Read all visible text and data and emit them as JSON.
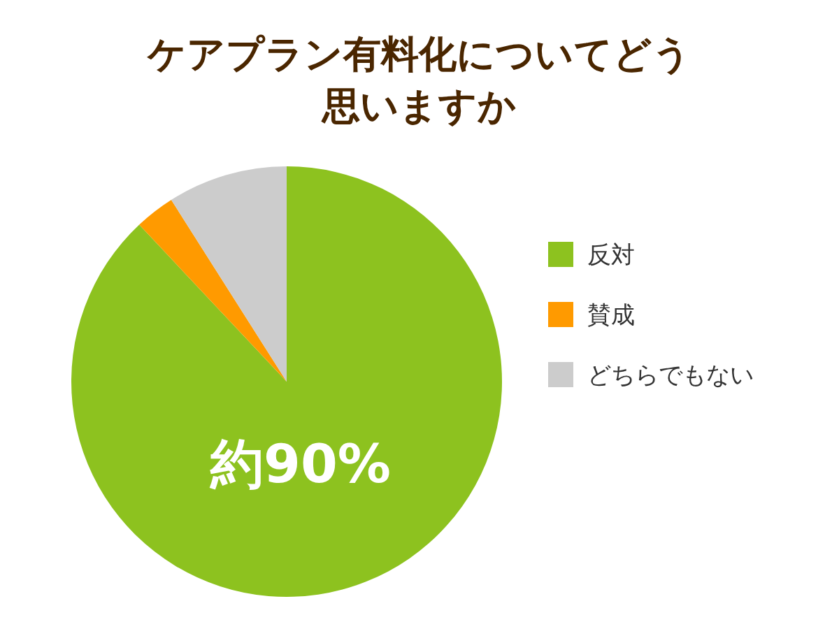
{
  "chart_data": {
    "type": "pie",
    "title": "ケアプラン有料化についてどう思いますか",
    "categories": [
      "反対",
      "賛成",
      "どちらでもない"
    ],
    "values": [
      88,
      3,
      9
    ],
    "colors": [
      "#8dc21f",
      "#ff9a00",
      "#cccccc"
    ],
    "legend": "right",
    "annotations": [
      "約90%"
    ]
  }
}
